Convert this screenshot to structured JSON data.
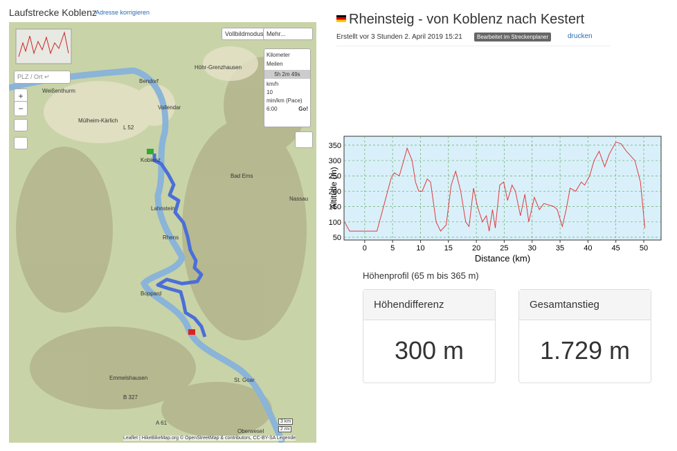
{
  "header": {
    "title": "Laufstrecke Koblenz",
    "link": "Adresse korrigieren"
  },
  "map": {
    "search_placeholder": "PLZ / Ort ↵",
    "zoom_in": "+",
    "zoom_out": "−",
    "fullscreen": "Vollbildmodus",
    "more": "Mehr...",
    "unit_km": "Kilometer",
    "unit_mi": "Meilen",
    "duration": "5h 2m 49s",
    "speed_label": "km/h",
    "speed": "10",
    "pace_label": "min/km (Pace)",
    "pace": "6:00",
    "go": "Go!",
    "scale_km": "3 km",
    "scale_mi": "2 mi",
    "attribution": "Leaflet | HikeBikeMap.org © OpenStreetMap & contributors, CC-BY-SA Legende",
    "labels": [
      "Bendorf",
      "Vallendar",
      "Höhr-Grenzhausen",
      "Weißenthurm",
      "Mülheim-Kärlich",
      "L 52",
      "Koblenz",
      "Lahnstein",
      "Bad Ems",
      "Nassau",
      "Rhens",
      "Boppard",
      "Emmelshausen",
      "St. Goar",
      "B 327",
      "A 61",
      "Oberwesel"
    ]
  },
  "route": {
    "title": "Rheinsteig - von Koblenz nach Kestert",
    "created": "Erstellt vor 3 Stunden 2. April 2019 15:21",
    "badge": "Bearbeitet im Streckenplaner",
    "print": "drucken"
  },
  "chart_data": {
    "type": "line",
    "xlabel": "Distance (km)",
    "ylabel": "Altitude (m)",
    "color": "#e03a3a",
    "grid": true,
    "x": [
      -3.6,
      -2.7,
      2.2,
      4.7,
      5.3,
      6.2,
      7.0,
      7.6,
      8.5,
      9.1,
      9.7,
      10.3,
      11.2,
      11.8,
      12.8,
      13.6,
      14.6,
      15.5,
      16.3,
      17.2,
      18.1,
      18.7,
      19.5,
      20.2,
      21.1,
      21.8,
      22.3,
      22.9,
      23.4,
      24.2,
      24.9,
      25.6,
      26.4,
      27.0,
      27.9,
      28.7,
      29.4,
      30.4,
      31.3,
      32.1,
      33.9,
      34.5,
      35.4,
      36.1,
      36.8,
      37.8,
      38.8,
      39.4,
      40.3,
      41.1,
      42.0,
      43.0,
      43.8,
      45.0,
      45.9,
      46.9,
      48.4,
      49.4,
      50.2
    ],
    "values": [
      100,
      70,
      70,
      240,
      260,
      250,
      300,
      340,
      300,
      230,
      200,
      200,
      240,
      230,
      100,
      70,
      90,
      220,
      265,
      200,
      100,
      85,
      210,
      150,
      100,
      120,
      70,
      140,
      80,
      220,
      230,
      170,
      220,
      200,
      120,
      190,
      100,
      180,
      140,
      160,
      150,
      140,
      85,
      140,
      210,
      200,
      230,
      220,
      250,
      300,
      330,
      280,
      320,
      360,
      355,
      330,
      300,
      230,
      80
    ],
    "xlim": [
      -3.7,
      53.1
    ],
    "ylim": [
      41,
      379
    ],
    "xticks": [
      0,
      5,
      10,
      15,
      20,
      25,
      30,
      35,
      40,
      45,
      50
    ],
    "yticks": [
      50,
      100,
      150,
      200,
      250,
      300,
      350
    ]
  },
  "profile_summary": "Höhenprofil (65 m bis 365 m)",
  "stats": [
    {
      "label": "Höhendifferenz",
      "value": "300 m"
    },
    {
      "label": "Gesamtanstieg",
      "value": "1.729 m"
    }
  ]
}
